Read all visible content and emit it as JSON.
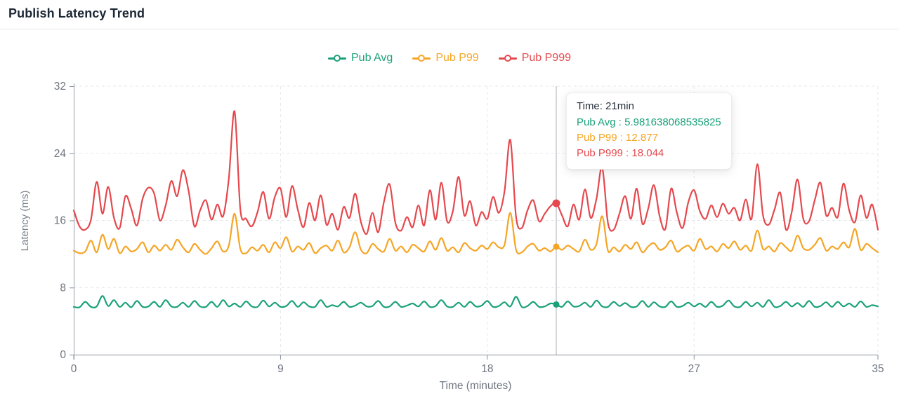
{
  "header": {
    "title": "Publish Latency Trend"
  },
  "legend": {
    "items": [
      {
        "label": "Pub Avg",
        "color": "#1AA179"
      },
      {
        "label": "Pub P99",
        "color": "#F5A524"
      },
      {
        "label": "Pub P999",
        "color": "#E5484D"
      }
    ]
  },
  "tooltip": {
    "title": "Time: 21min",
    "rows": [
      {
        "text": "Pub Avg : 5.981638068535825",
        "color": "#1AA179"
      },
      {
        "text": "Pub P99 : 12.877",
        "color": "#F5A524"
      },
      {
        "text": "Pub P999 : 18.044",
        "color": "#E5484D"
      }
    ]
  },
  "chart_data": {
    "type": "line",
    "title": "Publish Latency Trend",
    "xlabel": "Time (minutes)",
    "ylabel": "Latency (ms)",
    "xlim": [
      0,
      35
    ],
    "ylim": [
      0,
      32
    ],
    "xticks": [
      0,
      9,
      18,
      27,
      35
    ],
    "yticks": [
      0,
      8,
      16,
      24,
      32
    ],
    "grid": "dashed",
    "legend_position": "top-center",
    "x_start": 0,
    "x_step": 0.25,
    "crosshair": {
      "time_min": 21,
      "point_values": [
        5.981638068535825,
        12.877,
        18.044
      ]
    },
    "series": [
      {
        "name": "Pub Avg",
        "color": "#1AA179",
        "values": [
          5.7,
          5.65,
          6.3,
          5.7,
          5.75,
          7.0,
          5.8,
          6.5,
          5.7,
          6.2,
          5.65,
          6.4,
          5.7,
          5.75,
          6.3,
          5.7,
          6.5,
          5.75,
          5.7,
          6.2,
          5.7,
          6.4,
          5.75,
          5.7,
          6.3,
          5.7,
          6.5,
          5.75,
          6.1,
          5.7,
          6.35,
          5.75,
          5.7,
          6.45,
          5.75,
          6.2,
          5.7,
          5.8,
          6.4,
          5.7,
          6.25,
          5.75,
          5.7,
          6.5,
          5.7,
          5.9,
          5.75,
          6.3,
          5.7,
          5.85,
          6.2,
          5.75,
          5.8,
          6.4,
          5.7,
          5.75,
          6.3,
          5.7,
          5.85,
          6.1,
          5.75,
          6.35,
          5.7,
          5.8,
          6.5,
          5.75,
          5.7,
          6.2,
          5.7,
          6.3,
          5.75,
          5.85,
          6.4,
          5.7,
          5.8,
          6.25,
          5.75,
          6.9,
          5.7,
          5.8,
          6.3,
          5.7,
          5.75,
          6.1,
          5.981638068535825,
          5.7,
          6.35,
          5.75,
          5.8,
          6.2,
          5.7,
          6.45,
          5.75,
          5.7,
          6.3,
          5.8,
          6.15,
          5.7,
          5.75,
          6.4,
          5.7,
          6.25,
          5.75,
          5.7,
          6.35,
          5.7,
          5.8,
          6.2,
          5.75,
          6.1,
          5.7,
          6.3,
          5.7,
          5.85,
          6.45,
          5.75,
          5.7,
          6.3,
          5.75,
          6.2,
          5.7,
          6.5,
          5.7,
          5.8,
          6.3,
          5.75,
          6.15,
          5.7,
          6.4,
          5.7,
          5.8,
          6.25,
          5.7,
          6.3,
          5.75,
          6.1,
          5.7,
          6.35,
          5.7,
          5.9,
          5.75
        ]
      },
      {
        "name": "Pub P99",
        "color": "#F5A524",
        "values": [
          12.4,
          12.1,
          12.3,
          13.6,
          12.2,
          14.3,
          12.6,
          13.8,
          12.1,
          12.9,
          12.3,
          12.6,
          13.4,
          12.2,
          13.0,
          12.4,
          13.1,
          12.5,
          13.7,
          12.8,
          12.2,
          13.2,
          12.5,
          12.0,
          12.7,
          13.5,
          12.3,
          13.0,
          16.8,
          12.6,
          12.1,
          12.8,
          12.4,
          13.1,
          12.2,
          13.4,
          12.7,
          14.0,
          12.3,
          12.9,
          12.5,
          13.3,
          12.1,
          12.7,
          13.0,
          12.4,
          13.6,
          12.2,
          12.8,
          14.6,
          12.5,
          12.1,
          13.2,
          12.6,
          12.3,
          13.8,
          12.4,
          12.9,
          12.2,
          13.1,
          12.7,
          12.3,
          13.5,
          12.5,
          13.9,
          12.4,
          12.8,
          12.2,
          13.3,
          12.7,
          12.4,
          13.0,
          12.6,
          13.4,
          12.8,
          13.1,
          16.9,
          12.5,
          12.2,
          12.9,
          13.2,
          12.4,
          12.7,
          12.3,
          12.877,
          12.5,
          13.0,
          12.6,
          12.3,
          13.7,
          12.5,
          13.2,
          16.5,
          12.4,
          12.8,
          12.3,
          13.1,
          12.6,
          13.4,
          12.2,
          12.9,
          13.3,
          12.5,
          12.8,
          13.6,
          12.3,
          12.7,
          13.0,
          12.4,
          13.8,
          12.6,
          12.9,
          12.3,
          13.2,
          12.7,
          13.5,
          12.5,
          13.0,
          12.4,
          14.8,
          12.6,
          12.9,
          12.3,
          13.3,
          12.8,
          12.4,
          14.2,
          12.7,
          12.5,
          13.1,
          13.9,
          12.4,
          12.9,
          12.6,
          13.4,
          12.8,
          15.0,
          12.5,
          13.2,
          12.7,
          12.2
        ]
      },
      {
        "name": "Pub P999",
        "color": "#E5484D",
        "values": [
          17.2,
          15.3,
          14.9,
          16.1,
          20.6,
          16.8,
          20.0,
          16.3,
          15.1,
          18.9,
          17.4,
          15.4,
          18.6,
          19.9,
          19.2,
          16.0,
          17.8,
          20.7,
          18.9,
          22.0,
          19.5,
          15.3,
          17.2,
          18.4,
          16.1,
          17.9,
          16.5,
          21.0,
          29.0,
          17.3,
          16.2,
          15.3,
          17.0,
          19.4,
          16.2,
          18.8,
          19.8,
          16.4,
          20.1,
          17.3,
          15.2,
          18.1,
          16.0,
          19.0,
          15.5,
          16.8,
          14.9,
          17.6,
          16.3,
          19.2,
          15.8,
          14.4,
          16.9,
          14.6,
          18.2,
          20.3,
          15.7,
          14.8,
          16.4,
          15.2,
          17.8,
          15.4,
          19.6,
          16.1,
          20.5,
          15.9,
          17.1,
          21.2,
          16.6,
          18.3,
          15.4,
          17.0,
          16.2,
          18.8,
          16.9,
          19.5,
          25.6,
          16.4,
          15.1,
          17.2,
          18.4,
          15.9,
          16.8,
          17.7,
          18.044,
          16.6,
          15.3,
          17.9,
          16.1,
          19.7,
          16.3,
          18.6,
          22.3,
          15.7,
          14.9,
          16.8,
          18.9,
          16.2,
          19.8,
          15.6,
          17.4,
          20.2,
          16.5,
          15.0,
          19.8,
          16.9,
          15.1,
          18.2,
          19.6,
          17.1,
          16.2,
          17.8,
          16.4,
          18.0,
          16.8,
          17.5,
          16.0,
          18.5,
          16.2,
          22.7,
          16.6,
          15.5,
          17.3,
          19.3,
          14.9,
          17.0,
          20.9,
          16.2,
          15.9,
          18.4,
          20.5,
          16.6,
          17.5,
          16.4,
          20.4,
          17.2,
          15.8,
          19.0,
          16.3,
          17.9,
          14.9
        ]
      }
    ]
  }
}
